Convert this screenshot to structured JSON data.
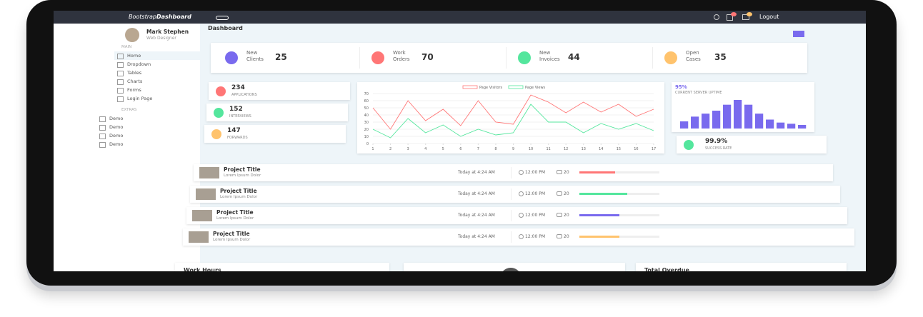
{
  "header": {
    "brand_light": "Bootstrap",
    "brand_bold": "Dashboard",
    "logout": "Logout"
  },
  "sidebar": {
    "user": {
      "name": "Mark Stephen",
      "role": "Web Designer"
    },
    "sections": [
      {
        "title": "MAIN",
        "items": [
          "Home",
          "Dropdown",
          "Tables",
          "Charts",
          "Forms",
          "Login Page"
        ]
      },
      {
        "title": "EXTRAS",
        "items": [
          "Demo",
          "Demo",
          "Demo",
          "Demo"
        ]
      }
    ]
  },
  "page_title": "Dashboard",
  "stats": [
    {
      "label": "New Clients",
      "value": 25,
      "color": "#796aee"
    },
    {
      "label": "Work Orders",
      "value": 70,
      "color": "#ff7676"
    },
    {
      "label": "New Invoices",
      "value": 44,
      "color": "#54e69d"
    },
    {
      "label": "Open Cases",
      "value": 35,
      "color": "#ffc36d"
    }
  ],
  "counters": [
    {
      "value": 234,
      "label": "APPLICATIONS",
      "color": "#ff7676"
    },
    {
      "value": 152,
      "label": "INTERVIEWS",
      "color": "#54e69d"
    },
    {
      "value": 147,
      "label": "FORWARDS",
      "color": "#ffc36d"
    }
  ],
  "chart_data": [
    {
      "type": "line",
      "x": [
        1,
        2,
        3,
        4,
        5,
        6,
        7,
        8,
        9,
        10,
        11,
        12,
        13,
        14,
        15,
        16,
        17
      ],
      "xlim": [
        1,
        17
      ],
      "xticks": [
        1,
        2,
        3,
        4,
        5,
        6,
        7,
        8,
        9,
        10,
        11,
        12,
        13,
        14,
        15,
        16,
        17
      ],
      "ylim": [
        0,
        70
      ],
      "yticks": [
        0,
        10,
        20,
        30,
        40,
        50,
        60,
        70
      ],
      "series": [
        {
          "name": "Page Visitors",
          "color": "#ff7676",
          "values": [
            50,
            20,
            60,
            32,
            48,
            25,
            60,
            30,
            27,
            68,
            58,
            43,
            58,
            44,
            55,
            38,
            48
          ]
        },
        {
          "name": "Page Views",
          "color": "#54e69d",
          "values": [
            20,
            8,
            35,
            15,
            26,
            10,
            20,
            12,
            15,
            55,
            30,
            30,
            15,
            28,
            20,
            28,
            18
          ]
        }
      ]
    },
    {
      "type": "bar",
      "title": "95%",
      "subtitle": "CURRENT SERVER UPTIME",
      "color": "#796aee",
      "categories": [
        null,
        null,
        null,
        null,
        null,
        null,
        null,
        null,
        null,
        null,
        null,
        null
      ],
      "values": [
        12,
        20,
        25,
        30,
        40,
        48,
        40,
        25,
        15,
        10,
        8,
        6
      ]
    }
  ],
  "success": {
    "value_label": "99.9%",
    "label": "SUCCESS RATE"
  },
  "projects": [
    {
      "title": "Project Title",
      "subtitle": "Lorem Ipsum Dolor",
      "date": "Today at 4:24 AM",
      "time": "12:00 PM",
      "comments": 20,
      "progress": 45,
      "color": "#ff7676"
    },
    {
      "title": "Project Title",
      "subtitle": "Lorem Ipsum Dolor",
      "date": "Today at 4:24 AM",
      "time": "12:00 PM",
      "comments": 20,
      "progress": 60,
      "color": "#54e69d"
    },
    {
      "title": "Project Title",
      "subtitle": "Lorem Ipsum Dolor",
      "date": "Today at 4:24 AM",
      "time": "12:00 PM",
      "comments": 20,
      "progress": 50,
      "color": "#796aee"
    },
    {
      "title": "Project Title",
      "subtitle": "Lorem Ipsum Dolor",
      "date": "Today at 4:24 AM",
      "time": "12:00 PM",
      "comments": 20,
      "progress": 50,
      "color": "#ffc36d"
    }
  ],
  "bottom_cards": [
    "Work Hours",
    "Total Overdue"
  ]
}
